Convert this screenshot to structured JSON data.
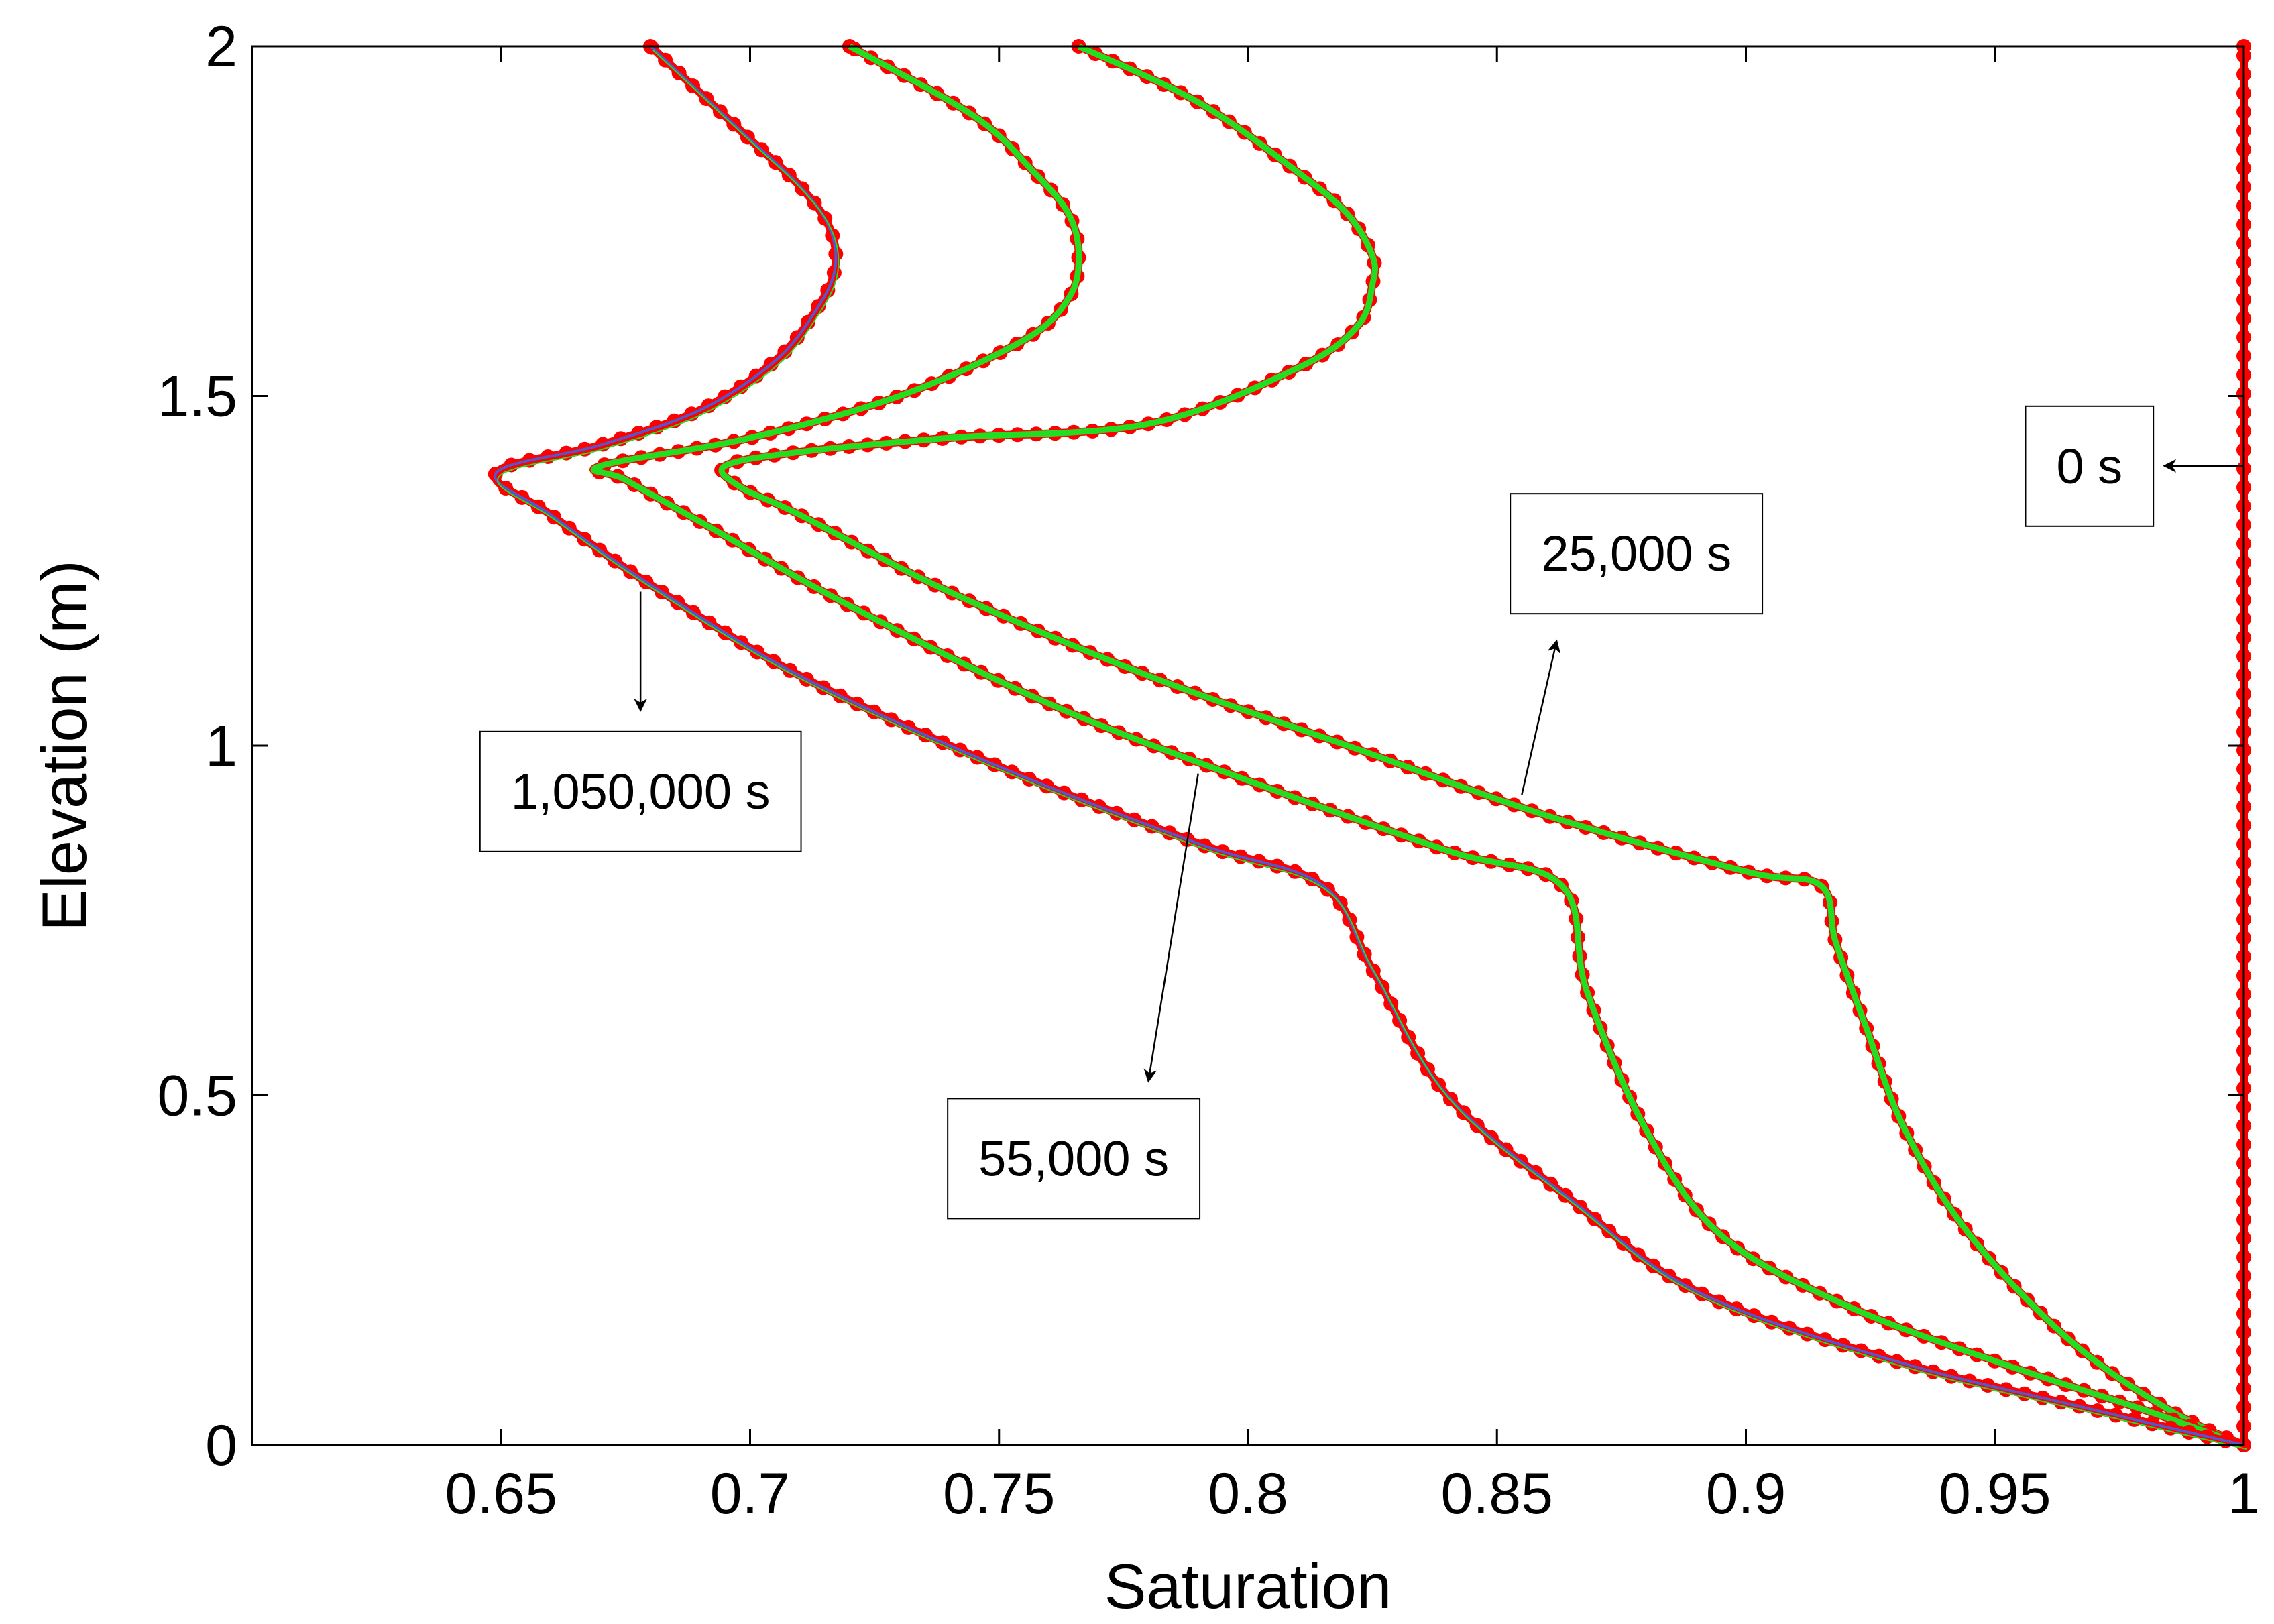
{
  "chart_data": {
    "type": "line",
    "title": "",
    "xlabel": "Saturation",
    "ylabel": "Elevation (m)",
    "xlim": [
      0.6,
      1.0
    ],
    "ylim": [
      0,
      2
    ],
    "xticks": [
      0.65,
      0.7,
      0.75,
      0.8,
      0.85,
      0.9,
      0.95,
      1
    ],
    "xtick_labels": [
      "0.65",
      "0.7",
      "0.75",
      "0.8",
      "0.85",
      "0.9",
      "0.95",
      "1"
    ],
    "yticks": [
      0,
      0.5,
      1,
      1.5,
      2
    ],
    "ytick_labels": [
      "0",
      "0.5",
      "1",
      "1.5",
      "2"
    ],
    "grid": false,
    "colors": {
      "markers": "#ff0000",
      "green_line": "#22dd22",
      "blue_line": "#5555cc",
      "axis": "#000000"
    },
    "series": [
      {
        "name": "0 s",
        "style": "red-markers",
        "x": [
          1,
          1,
          1,
          1,
          1,
          1,
          1,
          1,
          1,
          1,
          1,
          1,
          1,
          1,
          1,
          1,
          1,
          1,
          1,
          1,
          1
        ],
        "y": [
          0,
          0.1,
          0.2,
          0.3,
          0.4,
          0.5,
          0.6,
          0.7,
          0.8,
          0.9,
          1.0,
          1.1,
          1.2,
          1.3,
          1.4,
          1.5,
          1.6,
          1.7,
          1.8,
          1.9,
          2.0
        ]
      },
      {
        "name": "25,000 s",
        "style": "green-line-red-markers",
        "x": [
          1.0,
          0.985,
          0.965,
          0.945,
          0.932,
          0.924,
          0.918,
          0.915,
          0.9,
          0.86,
          0.82,
          0.78,
          0.74,
          0.71,
          0.698,
          0.695,
          0.71,
          0.74,
          0.78,
          0.81,
          0.822,
          0.825,
          0.825,
          0.82,
          0.81,
          0.79,
          0.766
        ],
        "y": [
          0.0,
          0.05,
          0.15,
          0.3,
          0.45,
          0.6,
          0.72,
          0.8,
          0.82,
          0.9,
          1.0,
          1.1,
          1.22,
          1.33,
          1.37,
          1.4,
          1.42,
          1.44,
          1.46,
          1.54,
          1.6,
          1.66,
          1.7,
          1.76,
          1.82,
          1.92,
          2.0
        ]
      },
      {
        "name": "55,000 s",
        "style": "green-line-red-markers",
        "x": [
          1.0,
          0.98,
          0.95,
          0.92,
          0.895,
          0.88,
          0.868,
          0.863,
          0.84,
          0.8,
          0.76,
          0.72,
          0.69,
          0.675,
          0.67,
          0.7,
          0.73,
          0.755,
          0.764,
          0.766,
          0.764,
          0.757,
          0.745,
          0.72
        ],
        "y": [
          0.0,
          0.05,
          0.12,
          0.2,
          0.3,
          0.45,
          0.65,
          0.8,
          0.85,
          0.95,
          1.06,
          1.2,
          1.32,
          1.38,
          1.4,
          1.44,
          1.5,
          1.58,
          1.64,
          1.7,
          1.76,
          1.82,
          1.9,
          2.0
        ]
      },
      {
        "name": "1,050,000 s",
        "style": "blue-line-red-markers",
        "x": [
          1.0,
          0.97,
          0.93,
          0.89,
          0.865,
          0.84,
          0.825,
          0.815,
          0.79,
          0.75,
          0.71,
          0.68,
          0.66,
          0.649,
          0.67,
          0.69,
          0.705,
          0.713,
          0.717,
          0.716,
          0.71,
          0.698,
          0.68
        ],
        "y": [
          0.0,
          0.05,
          0.12,
          0.22,
          0.35,
          0.5,
          0.68,
          0.8,
          0.86,
          0.97,
          1.1,
          1.23,
          1.33,
          1.39,
          1.43,
          1.48,
          1.55,
          1.62,
          1.68,
          1.74,
          1.8,
          1.88,
          2.0
        ]
      }
    ],
    "annotations": [
      {
        "label": "0 s",
        "arrow_from": [
          1.0,
          1.4
        ],
        "arrow_to": [
          0.984,
          1.4
        ],
        "box_anchor": [
          0.969,
          1.4
        ]
      },
      {
        "label": "25,000 s",
        "arrow_from": [
          0.855,
          0.93
        ],
        "arrow_to": [
          0.862,
          1.15
        ],
        "box_anchor": [
          0.878,
          1.275
        ]
      },
      {
        "label": "55,000 s",
        "arrow_from": [
          0.79,
          0.96
        ],
        "arrow_to": [
          0.78,
          0.52
        ],
        "box_anchor": [
          0.765,
          0.41
        ]
      },
      {
        "label": "1,050,000 s",
        "arrow_from": [
          0.678,
          1.22
        ],
        "arrow_to": [
          0.678,
          1.05
        ],
        "box_anchor": [
          0.678,
          0.935
        ]
      }
    ]
  }
}
